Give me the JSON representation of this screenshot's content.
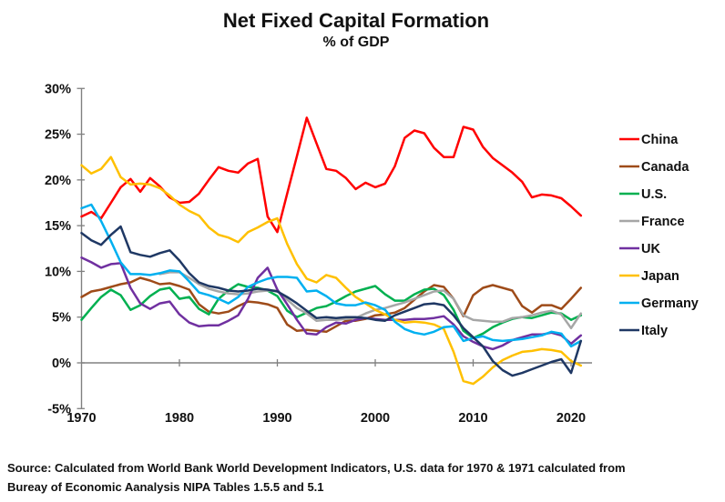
{
  "header": {
    "title": "Net Fixed Capital Formation",
    "subtitle": "% of GDP"
  },
  "source": {
    "line1": "Source:  Calculated from World Bank World Development Indicators, U.S. data for 1970 & 1971 calculated from",
    "line2": "Bureay of Economic Aanalysis NIPA Tables 1.5.5 and 5.1"
  },
  "chart_data": {
    "type": "line",
    "title": "Net Fixed Capital Formation",
    "subtitle": "% of GDP",
    "xlabel": "",
    "ylabel": "",
    "ylim": [
      -5,
      30
    ],
    "yticks": [
      30,
      25,
      20,
      15,
      10,
      5,
      0,
      -5
    ],
    "ytick_suffix": "%",
    "xticks": [
      1970,
      1980,
      1990,
      2000,
      2010,
      2020
    ],
    "grid": false,
    "legend_position": "right",
    "x": [
      1970,
      1971,
      1972,
      1973,
      1974,
      1975,
      1976,
      1977,
      1978,
      1979,
      1980,
      1981,
      1982,
      1983,
      1984,
      1985,
      1986,
      1987,
      1988,
      1989,
      1990,
      1991,
      1992,
      1993,
      1994,
      1995,
      1996,
      1997,
      1998,
      1999,
      2000,
      2001,
      2002,
      2003,
      2004,
      2005,
      2006,
      2007,
      2008,
      2009,
      2010,
      2011,
      2012,
      2013,
      2014,
      2015,
      2016,
      2017,
      2018,
      2019,
      2020,
      2021
    ],
    "series": [
      {
        "name": "China",
        "color": "#FF0000",
        "values": [
          16.0,
          16.5,
          15.8,
          17.5,
          19.2,
          20.1,
          18.7,
          20.2,
          19.3,
          18.1,
          17.5,
          17.6,
          18.5,
          20.0,
          21.4,
          21.0,
          20.8,
          21.8,
          22.3,
          16.0,
          14.3,
          18.5,
          22.6,
          26.8,
          24.0,
          21.2,
          21.0,
          20.2,
          19.0,
          19.7,
          19.2,
          19.6,
          21.5,
          24.6,
          25.4,
          25.1,
          23.5,
          22.5,
          22.5,
          25.8,
          25.5,
          23.6,
          22.4,
          21.6,
          20.8,
          19.8,
          18.1,
          18.4,
          18.3,
          18.0,
          17.1,
          16.1
        ]
      },
      {
        "name": "Canada",
        "color": "#9E4B19",
        "values": [
          7.2,
          7.8,
          8.0,
          8.3,
          8.6,
          8.8,
          9.3,
          9.0,
          8.6,
          8.7,
          8.4,
          8.0,
          6.4,
          5.6,
          5.4,
          5.6,
          6.2,
          6.7,
          6.6,
          6.4,
          6.0,
          4.2,
          3.5,
          3.6,
          3.5,
          3.4,
          4.0,
          4.6,
          4.6,
          4.8,
          5.2,
          5.3,
          5.5,
          6.0,
          6.9,
          7.8,
          8.5,
          8.3,
          7.0,
          5.1,
          7.4,
          8.2,
          8.5,
          8.2,
          7.9,
          6.2,
          5.5,
          6.3,
          6.3,
          5.9,
          7.0,
          8.2
        ]
      },
      {
        "name": "U.S.",
        "color": "#00B050",
        "values": [
          4.7,
          6.0,
          7.2,
          8.0,
          7.4,
          5.8,
          6.3,
          7.3,
          8.0,
          8.2,
          7.0,
          7.2,
          5.9,
          5.3,
          7.0,
          7.9,
          8.6,
          8.3,
          8.2,
          7.9,
          7.3,
          5.7,
          5.0,
          5.5,
          6.0,
          6.2,
          6.7,
          7.3,
          7.8,
          8.1,
          8.4,
          7.5,
          6.8,
          6.8,
          7.5,
          8.0,
          8.1,
          7.4,
          5.8,
          3.5,
          2.7,
          3.2,
          3.9,
          4.4,
          4.8,
          5.0,
          4.9,
          5.2,
          5.5,
          5.4,
          4.7,
          5.2
        ]
      },
      {
        "name": "France",
        "color": "#A6A6A6",
        "values": [
          null,
          null,
          null,
          null,
          null,
          null,
          null,
          null,
          9.7,
          9.9,
          9.9,
          9.3,
          8.6,
          8.1,
          7.8,
          7.6,
          7.5,
          7.6,
          7.8,
          7.9,
          7.9,
          6.9,
          6.0,
          5.4,
          4.6,
          4.7,
          4.7,
          4.8,
          4.9,
          5.4,
          5.8,
          6.0,
          6.3,
          6.6,
          7.0,
          7.4,
          7.8,
          7.9,
          7.0,
          5.2,
          4.7,
          4.6,
          4.5,
          4.5,
          4.9,
          5.0,
          5.2,
          5.5,
          5.7,
          5.3,
          3.8,
          5.4
        ]
      },
      {
        "name": "UK",
        "color": "#7030A0",
        "values": [
          11.5,
          11.0,
          10.4,
          10.8,
          10.9,
          8.2,
          6.5,
          5.9,
          6.5,
          6.7,
          5.3,
          4.4,
          4.0,
          4.1,
          4.1,
          4.6,
          5.2,
          7.0,
          9.3,
          10.4,
          8.0,
          6.4,
          4.7,
          3.2,
          3.1,
          3.9,
          4.4,
          4.3,
          4.7,
          4.9,
          4.8,
          4.7,
          4.7,
          4.7,
          4.8,
          4.8,
          4.9,
          5.1,
          4.2,
          2.9,
          2.3,
          1.8,
          1.5,
          1.9,
          2.5,
          2.8,
          3.1,
          3.1,
          3.3,
          3.0,
          2.1,
          3.0
        ]
      },
      {
        "name": "Japan",
        "color": "#FFC000",
        "values": [
          21.6,
          20.7,
          21.2,
          22.5,
          20.3,
          19.5,
          19.6,
          19.5,
          19.1,
          18.3,
          17.3,
          16.6,
          16.1,
          14.8,
          14.0,
          13.7,
          13.2,
          14.3,
          14.8,
          15.4,
          15.8,
          13.0,
          10.8,
          9.2,
          8.8,
          9.6,
          9.3,
          8.2,
          7.2,
          6.5,
          5.8,
          5.3,
          4.7,
          4.4,
          4.5,
          4.4,
          4.2,
          3.7,
          1.2,
          -2.0,
          -2.3,
          -1.5,
          -0.5,
          0.3,
          0.8,
          1.2,
          1.3,
          1.5,
          1.4,
          1.2,
          0.2,
          -0.3
        ]
      },
      {
        "name": "Germany",
        "color": "#00B0F0",
        "values": [
          16.9,
          17.3,
          15.5,
          13.3,
          11.0,
          9.7,
          9.7,
          9.6,
          9.8,
          10.1,
          10.0,
          8.9,
          7.7,
          7.4,
          7.0,
          6.5,
          7.2,
          8.3,
          8.8,
          9.2,
          9.4,
          9.4,
          9.3,
          7.8,
          7.9,
          7.3,
          6.5,
          6.3,
          6.3,
          6.6,
          6.3,
          5.8,
          4.5,
          3.7,
          3.3,
          3.1,
          3.4,
          3.9,
          4.0,
          2.4,
          2.7,
          2.9,
          2.5,
          2.4,
          2.5,
          2.6,
          2.8,
          3.0,
          3.4,
          3.2,
          1.8,
          2.4
        ]
      },
      {
        "name": "Italy",
        "color": "#1F3864",
        "values": [
          14.2,
          13.4,
          12.9,
          14.0,
          14.9,
          12.1,
          11.8,
          11.6,
          12.0,
          12.3,
          11.2,
          9.8,
          8.8,
          8.4,
          8.2,
          7.9,
          7.8,
          7.9,
          8.1,
          8.0,
          7.8,
          7.2,
          6.5,
          5.7,
          4.9,
          5.0,
          4.9,
          5.0,
          5.0,
          4.9,
          4.7,
          4.6,
          5.2,
          5.6,
          6.0,
          6.4,
          6.5,
          6.3,
          5.2,
          3.8,
          2.8,
          1.8,
          0.2,
          -0.8,
          -1.4,
          -1.1,
          -0.7,
          -0.3,
          0.1,
          0.4,
          -1.1,
          2.4
        ]
      }
    ]
  }
}
